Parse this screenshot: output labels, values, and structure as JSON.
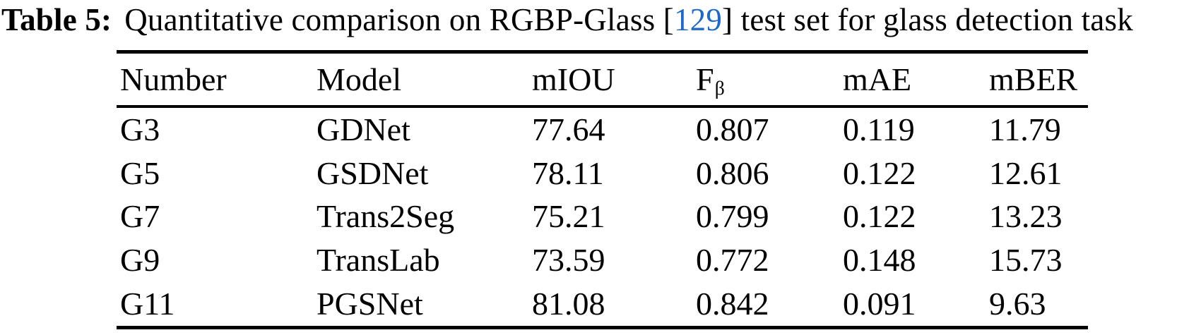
{
  "caption": {
    "label": "Table 5:",
    "before_cite": "Quantitative comparison on RGBP-Glass [",
    "citation": "129",
    "after_cite": "] test set for glass detection task"
  },
  "colors": {
    "citation_blue": "#1E69C8",
    "text": "#000000",
    "background": "#ffffff"
  },
  "table": {
    "headers": [
      {
        "label": "Number",
        "sub": ""
      },
      {
        "label": "Model",
        "sub": ""
      },
      {
        "label": "mIOU",
        "sub": ""
      },
      {
        "label": "F",
        "sub": "β"
      },
      {
        "label": "mAE",
        "sub": ""
      },
      {
        "label": "mBER",
        "sub": ""
      }
    ],
    "rows": [
      {
        "number": "G3",
        "model": "GDNet",
        "miou": "77.64",
        "fbeta": "0.807",
        "mae": "0.119",
        "mber": "11.79"
      },
      {
        "number": "G5",
        "model": "GSDNet",
        "miou": "78.11",
        "fbeta": "0.806",
        "mae": "0.122",
        "mber": "12.61"
      },
      {
        "number": "G7",
        "model": "Trans2Seg",
        "miou": "75.21",
        "fbeta": "0.799",
        "mae": "0.122",
        "mber": "13.23"
      },
      {
        "number": "G9",
        "model": "TransLab",
        "miou": "73.59",
        "fbeta": "0.772",
        "mae": "0.148",
        "mber": "15.73"
      },
      {
        "number": "G11",
        "model": "PGSNet",
        "miou": "81.08",
        "fbeta": "0.842",
        "mae": "0.091",
        "mber": "9.63"
      }
    ]
  },
  "chart_data": {
    "type": "table",
    "title": "Table 5: Quantitative comparison on RGBP-Glass [129] test set for glass detection task",
    "columns": [
      "Number",
      "Model",
      "mIOU",
      "Fβ",
      "mAE",
      "mBER"
    ],
    "rows": [
      [
        "G3",
        "GDNet",
        77.64,
        0.807,
        0.119,
        11.79
      ],
      [
        "G5",
        "GSDNet",
        78.11,
        0.806,
        0.122,
        12.61
      ],
      [
        "G7",
        "Trans2Seg",
        75.21,
        0.799,
        0.122,
        13.23
      ],
      [
        "G9",
        "TransLab",
        73.59,
        0.772,
        0.148,
        15.73
      ],
      [
        "G11",
        "PGSNet",
        81.08,
        0.842,
        0.091,
        9.63
      ]
    ]
  }
}
